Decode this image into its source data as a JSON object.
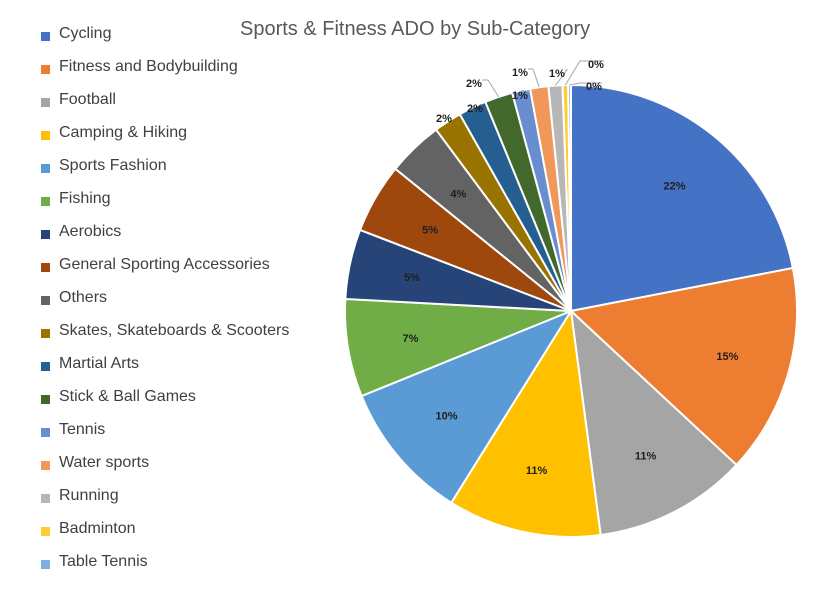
{
  "chart_data": {
    "type": "pie",
    "title": "Sports & Fitness ADO by Sub-Category",
    "legend_position": "left",
    "slices": [
      {
        "label": "Cycling",
        "value": 22,
        "display": "22%",
        "color": "#4472C4"
      },
      {
        "label": "Fitness and Bodybuilding",
        "value": 15,
        "display": "15%",
        "color": "#ED7D31"
      },
      {
        "label": "Football",
        "value": 11,
        "display": "11%",
        "color": "#A5A5A5"
      },
      {
        "label": "Camping & Hiking",
        "value": 11,
        "display": "11%",
        "color": "#FFC000"
      },
      {
        "label": "Sports Fashion",
        "value": 10,
        "display": "10%",
        "color": "#5B9BD5"
      },
      {
        "label": "Fishing",
        "value": 7,
        "display": "7%",
        "color": "#70AD47"
      },
      {
        "label": "Aerobics",
        "value": 5,
        "display": "5%",
        "color": "#264478"
      },
      {
        "label": "General Sporting Accessories",
        "value": 5,
        "display": "5%",
        "color": "#9E480E"
      },
      {
        "label": "Others",
        "value": 4,
        "display": "4%",
        "color": "#636363"
      },
      {
        "label": "Skates, Skateboards & Scooters",
        "value": 2,
        "display": "2%",
        "color": "#997300"
      },
      {
        "label": "Martial Arts",
        "value": 2,
        "display": "2%",
        "color": "#255E91"
      },
      {
        "label": "Stick & Ball Games",
        "value": 2,
        "display": "2%",
        "color": "#43682B"
      },
      {
        "label": "Tennis",
        "value": 1.3,
        "display": "1%",
        "color": "#698ED0"
      },
      {
        "label": "Water sports",
        "value": 1.3,
        "display": "1%",
        "color": "#F1975A"
      },
      {
        "label": "Running",
        "value": 1.0,
        "display": "1%",
        "color": "#B7B7B7"
      },
      {
        "label": "Badminton",
        "value": 0.4,
        "display": "0%",
        "color": "#FFCD33"
      },
      {
        "label": "Table Tennis",
        "value": 0.2,
        "display": "0%",
        "color": "#7CAFDD"
      }
    ]
  }
}
